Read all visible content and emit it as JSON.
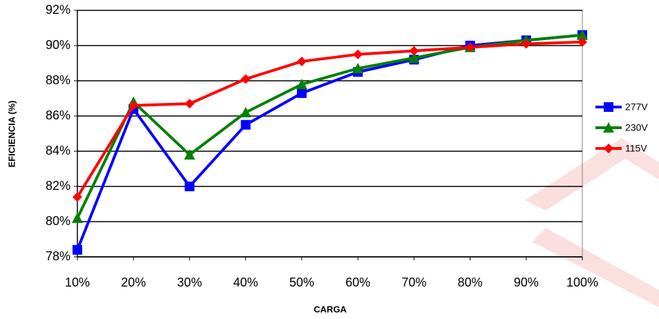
{
  "chart_data": {
    "type": "line",
    "x_label": "CARGA",
    "y_label": "EFICIENCIA  (%)",
    "categories": [
      "10%",
      "20%",
      "30%",
      "40%",
      "50%",
      "60%",
      "70%",
      "80%",
      "90%",
      "100%"
    ],
    "series": [
      {
        "name": "277V",
        "color": "#0000ff",
        "marker": "square",
        "values": [
          78.4,
          86.4,
          82.0,
          85.5,
          87.3,
          88.5,
          89.2,
          90.0,
          90.3,
          90.6
        ]
      },
      {
        "name": "230V",
        "color": "#008000",
        "marker": "triangle",
        "values": [
          80.2,
          86.8,
          83.8,
          86.2,
          87.8,
          88.7,
          89.3,
          89.9,
          90.3,
          90.6
        ]
      },
      {
        "name": "115V",
        "color": "#ff0000",
        "marker": "diamond",
        "values": [
          81.4,
          86.6,
          86.7,
          88.1,
          89.1,
          89.5,
          89.7,
          89.9,
          90.1,
          90.2
        ]
      }
    ],
    "ylim": [
      78,
      92
    ],
    "yticks": [
      {
        "value": 78,
        "label": "78%"
      },
      {
        "value": 80,
        "label": "80%"
      },
      {
        "value": 82,
        "label": "82%"
      },
      {
        "value": 84,
        "label": "84%"
      },
      {
        "value": 86,
        "label": "86%"
      },
      {
        "value": 88,
        "label": "88%"
      },
      {
        "value": 90,
        "label": "90%"
      },
      {
        "value": 92,
        "label": "92%"
      }
    ],
    "grid": true,
    "legend": "right"
  }
}
